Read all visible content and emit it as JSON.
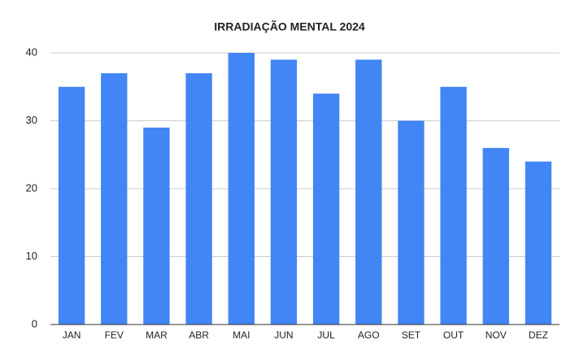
{
  "chart_data": {
    "type": "bar",
    "title": "IRRADIAÇÃO MENTAL 2024",
    "categories": [
      "JAN",
      "FEV",
      "MAR",
      "ABR",
      "MAI",
      "JUN",
      "JUL",
      "AGO",
      "SET",
      "OUT",
      "NOV",
      "DEZ"
    ],
    "values": [
      35,
      37,
      29,
      37,
      40,
      39,
      34,
      39,
      30,
      35,
      26,
      24
    ],
    "color": "#4285f4",
    "ylim": [
      0,
      40
    ],
    "yticks": [
      0,
      10,
      20,
      30,
      40
    ],
    "grid": true
  }
}
